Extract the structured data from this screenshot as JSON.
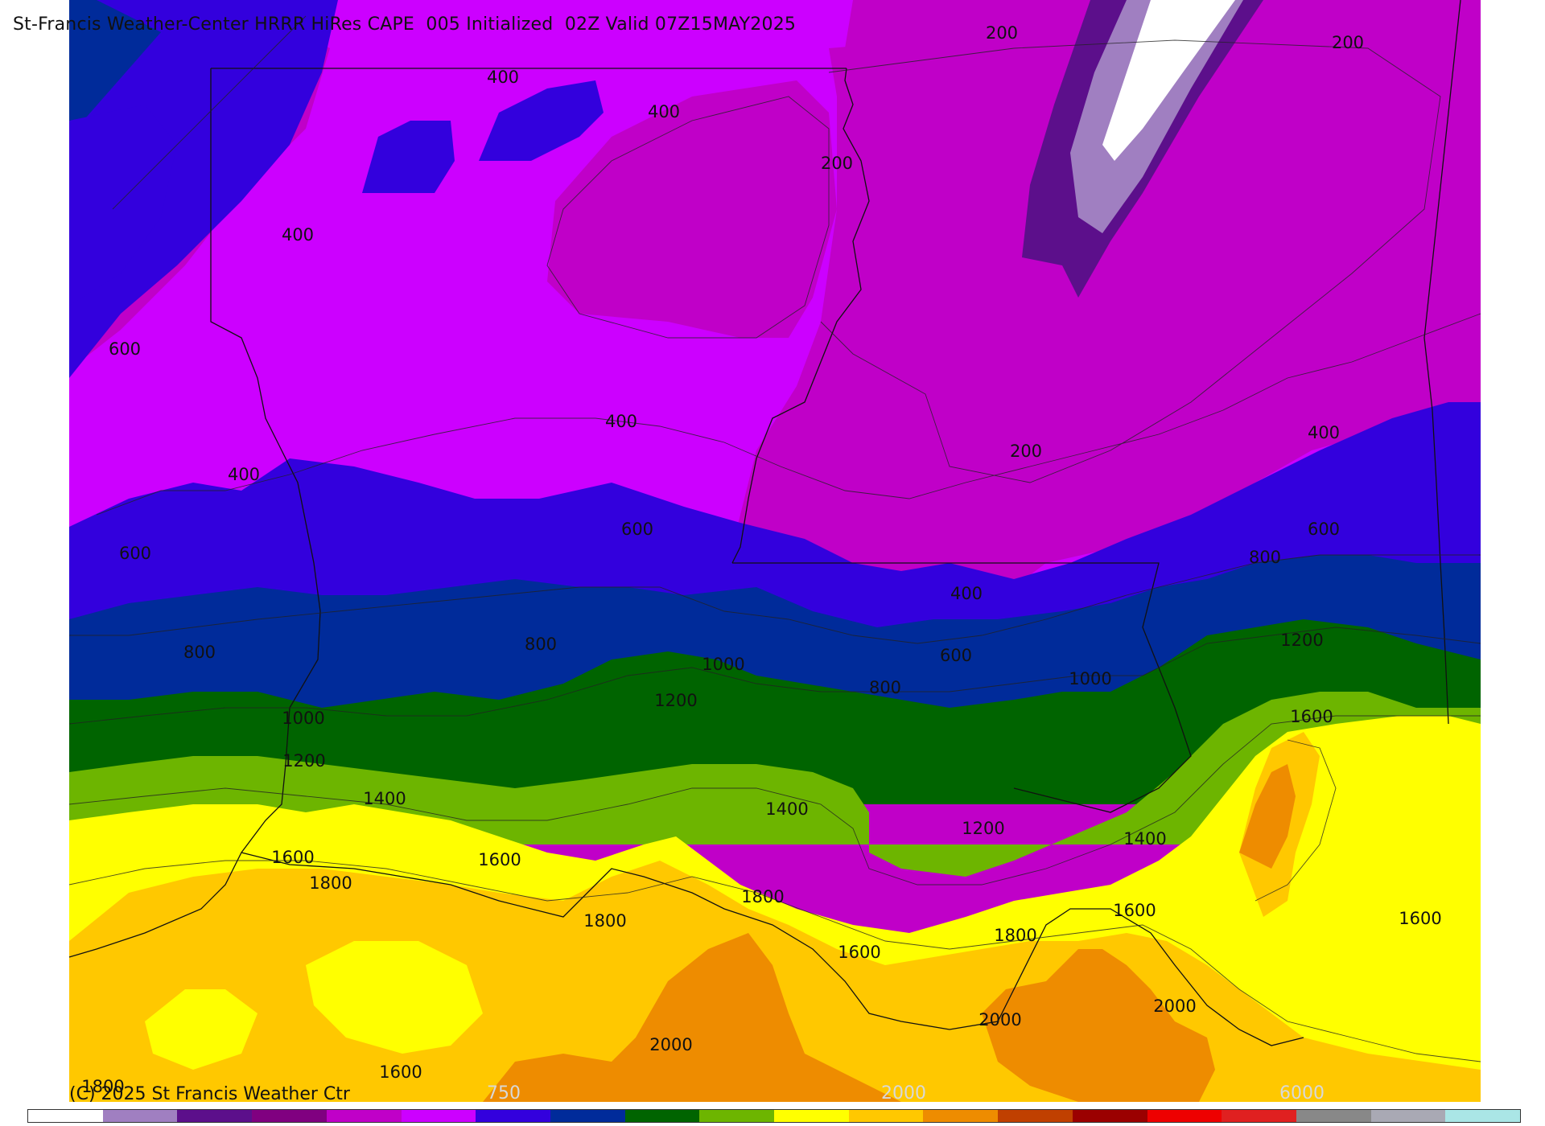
{
  "title": "St-Francis Weather-Center HRRR HiRes CAPE  005 Initialized  02Z Valid 07Z15MAY2025",
  "copyright": "(C) 2025 St Francis Weather Ctr",
  "colorbar": {
    "colors": [
      "#ffffff",
      "#a07fc1",
      "#5c0f8b",
      "#800080",
      "#c000c8",
      "#cc00ff",
      "#3300dd",
      "#002b9a",
      "#006400",
      "#6db500",
      "#ffff00",
      "#ffc800",
      "#ee8c00",
      "#c04000",
      "#9b0000",
      "#ee0000",
      "#e02020",
      "#888888",
      "#a9a9b4",
      "#aae6e6"
    ],
    "tick_labels": [
      "750",
      "2000",
      "6000"
    ]
  },
  "contour_labels": [
    "200",
    "200",
    "200",
    "200",
    "400",
    "400",
    "400",
    "400",
    "400",
    "400",
    "400",
    "600",
    "600",
    "600",
    "600",
    "600",
    "800",
    "800",
    "800",
    "800",
    "1000",
    "1000",
    "1000",
    "1200",
    "1200",
    "1200",
    "1200",
    "1400",
    "1400",
    "1400",
    "1600",
    "1600",
    "1600",
    "1600",
    "1600",
    "1600",
    "1600",
    "1800",
    "1800",
    "1800",
    "1800",
    "1800",
    "2000",
    "2000",
    "2000"
  ],
  "legend_fill_colors": {
    "white": "#ffffff",
    "lavender": "#a07fc1",
    "deep_purple": "#5c0f8b",
    "magenta_dark": "#c000c8",
    "violet": "#cc00ff",
    "blue": "#3300dd",
    "navy": "#002b9a",
    "dark_green": "#006400",
    "light_green": "#6db500",
    "yellow": "#ffff00",
    "gold": "#ffc800",
    "orange": "#ee8c00"
  }
}
